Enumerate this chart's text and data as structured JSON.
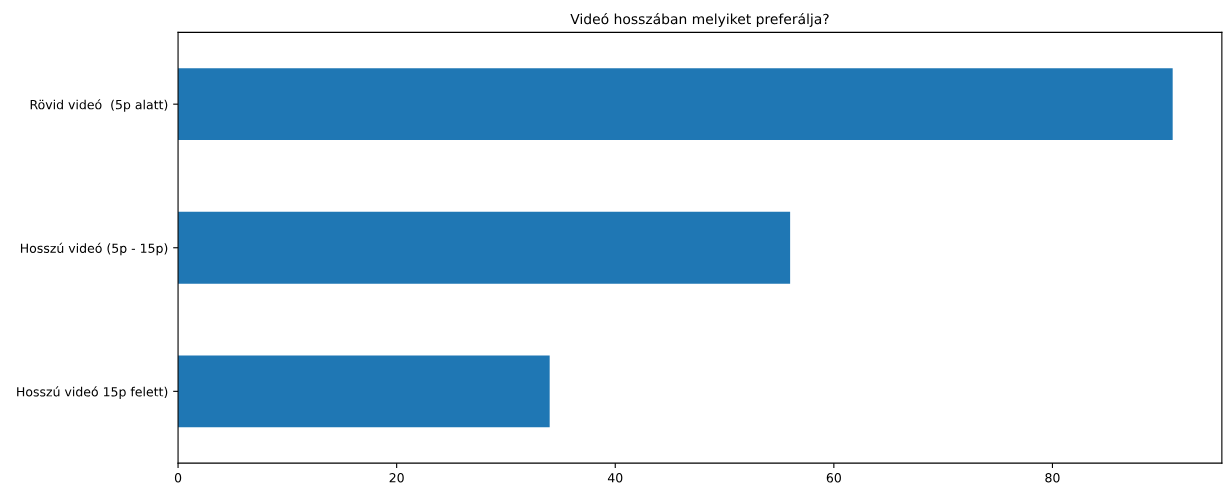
{
  "chart_data": {
    "type": "bar",
    "orientation": "horizontal",
    "title": "Videó hosszában melyiket preferálja?",
    "categories": [
      "Rövid videó  (5p alatt)",
      "Hosszú videó (5p - 15p)",
      "Hosszú videó 15p felett)"
    ],
    "values": [
      91,
      56,
      34
    ],
    "color": "#1f77b4",
    "xlim": [
      0,
      95.5
    ],
    "xticks": [
      0,
      20,
      40,
      60,
      80
    ],
    "grid": false
  }
}
